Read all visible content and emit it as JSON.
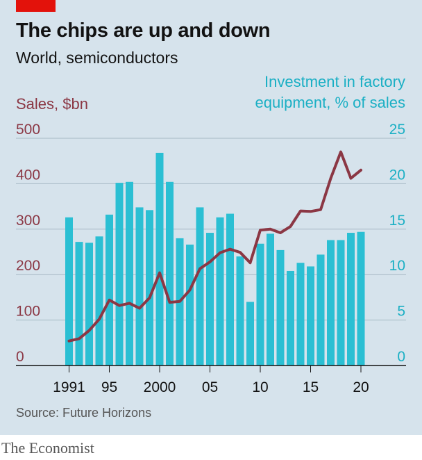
{
  "header": {
    "title": "The chips are up and down",
    "subtitle": "World, semiconductors"
  },
  "footer": {
    "source": "Source: Future Horizons",
    "brand": "The Economist"
  },
  "chart_data": {
    "type": "bar",
    "x": [
      1991,
      1992,
      1993,
      1994,
      1995,
      1996,
      1997,
      1998,
      1999,
      2000,
      2001,
      2002,
      2003,
      2004,
      2005,
      2006,
      2007,
      2008,
      2009,
      2010,
      2011,
      2012,
      2013,
      2014,
      2015,
      2016,
      2017,
      2018,
      2019,
      2020
    ],
    "x_tick_values": [
      1991,
      1995,
      2000,
      2005,
      2010,
      2015,
      2020
    ],
    "x_tick_labels": [
      "1991",
      "95",
      "2000",
      "05",
      "10",
      "15",
      "20"
    ],
    "series": [
      {
        "name": "Investment in factory equipment, % of sales",
        "type": "bar",
        "axis": "right",
        "color": "#2bbfd3",
        "values": [
          16.3,
          13.6,
          13.5,
          14.2,
          16.6,
          20.1,
          20.2,
          17.4,
          17.1,
          23.4,
          20.2,
          14.0,
          13.3,
          17.4,
          14.6,
          16.3,
          16.7,
          12.0,
          7.0,
          13.4,
          14.5,
          12.7,
          10.4,
          11.3,
          10.9,
          12.2,
          13.8,
          13.8,
          14.6,
          14.7
        ]
      },
      {
        "name": "Sales, $bn",
        "type": "line",
        "axis": "left",
        "color": "#8b3744",
        "values": [
          54,
          59,
          77,
          102,
          144,
          132,
          137,
          126,
          149,
          204,
          139,
          141,
          166,
          213,
          228,
          248,
          256,
          249,
          226,
          298,
          300,
          292,
          306,
          340,
          339,
          343,
          412,
          470,
          412,
          430
        ]
      }
    ],
    "left_axis": {
      "label": "Sales, $bn",
      "min": 0,
      "max": 500,
      "ticks": [
        0,
        100,
        200,
        300,
        400,
        500
      ]
    },
    "right_axis": {
      "label_lines": [
        "Investment in factory",
        "equipment, % of sales"
      ],
      "min": 0,
      "max": 25,
      "ticks": [
        0,
        5,
        10,
        15,
        20,
        25
      ]
    },
    "grid": true
  }
}
